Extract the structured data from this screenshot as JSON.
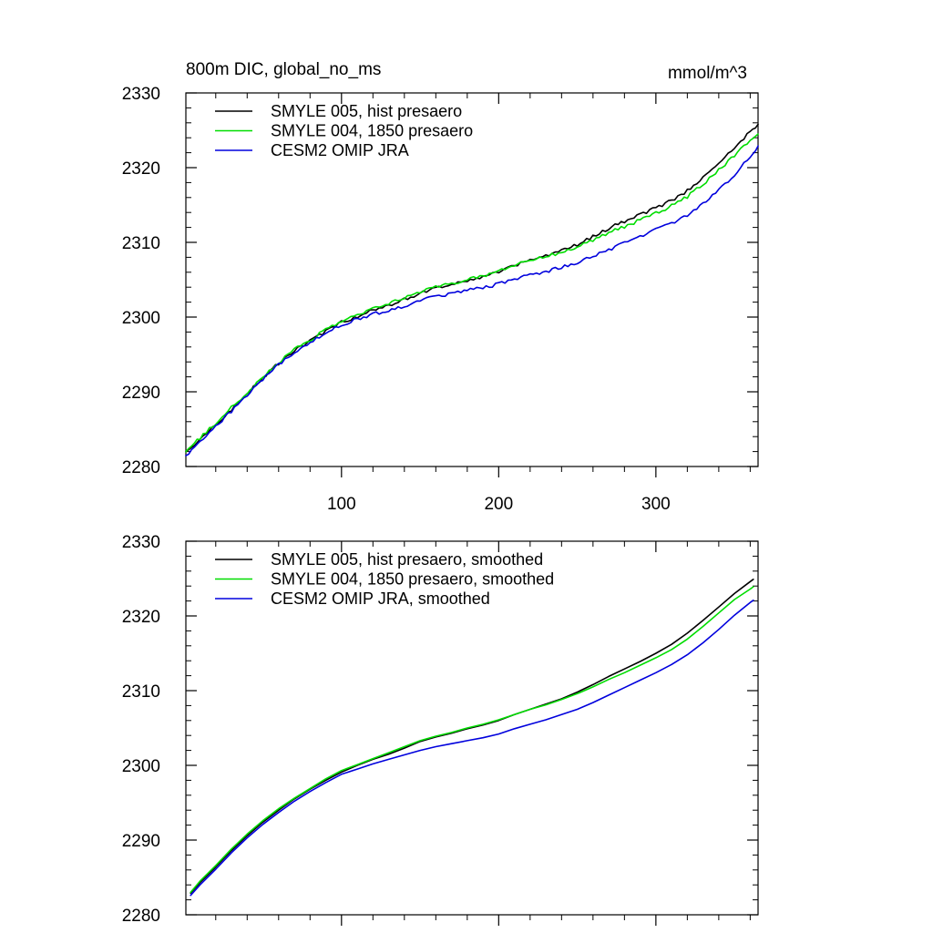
{
  "chart_data": [
    {
      "type": "line",
      "title": "800m DIC, global_no_ms",
      "units": "mmol/m^3",
      "xlabel": "",
      "ylabel": "",
      "xlim": [
        1,
        365
      ],
      "ylim": [
        2280,
        2330
      ],
      "x_ticks": [
        100,
        200,
        300
      ],
      "x_tick_labels": [
        "100",
        "200",
        "300"
      ],
      "y_ticks": [
        2280,
        2290,
        2300,
        2310,
        2320,
        2330
      ],
      "y_tick_labels": [
        "2280",
        "2290",
        "2300",
        "2310",
        "2320",
        "2330"
      ],
      "legend_position": "top-left",
      "grid": false,
      "noisy": true,
      "series": [
        {
          "name": "SMYLE 005, hist presaero",
          "color": "#000000",
          "x": [
            1,
            10,
            20,
            30,
            40,
            50,
            60,
            70,
            80,
            90,
            100,
            110,
            120,
            130,
            140,
            150,
            160,
            170,
            180,
            190,
            200,
            210,
            220,
            230,
            240,
            250,
            260,
            270,
            280,
            290,
            300,
            310,
            320,
            330,
            340,
            350,
            360,
            365
          ],
          "values": [
            2282.0,
            2283.6,
            2285.6,
            2287.6,
            2289.7,
            2291.9,
            2293.8,
            2295.5,
            2296.8,
            2298.1,
            2299.3,
            2300.1,
            2300.9,
            2301.6,
            2302.4,
            2303.2,
            2303.9,
            2304.4,
            2304.9,
            2305.4,
            2306.0,
            2306.9,
            2307.6,
            2308.2,
            2308.9,
            2309.7,
            2310.8,
            2311.9,
            2312.8,
            2313.7,
            2314.6,
            2315.6,
            2316.9,
            2318.7,
            2320.6,
            2322.6,
            2324.8,
            2325.8
          ]
        },
        {
          "name": "SMYLE 004, 1850 presaero",
          "color": "#00dd00",
          "x": [
            1,
            10,
            20,
            30,
            40,
            50,
            60,
            70,
            80,
            90,
            100,
            110,
            120,
            130,
            140,
            150,
            160,
            170,
            180,
            190,
            200,
            210,
            220,
            230,
            240,
            250,
            260,
            270,
            280,
            290,
            300,
            310,
            320,
            330,
            340,
            350,
            360,
            365
          ],
          "values": [
            2282.1,
            2283.8,
            2285.8,
            2287.9,
            2289.9,
            2292.0,
            2293.9,
            2295.6,
            2296.9,
            2298.3,
            2299.5,
            2300.3,
            2301.1,
            2301.8,
            2302.6,
            2303.4,
            2304.0,
            2304.5,
            2305.0,
            2305.5,
            2306.1,
            2306.9,
            2307.5,
            2308.1,
            2308.7,
            2309.4,
            2310.3,
            2311.3,
            2312.1,
            2313.0,
            2313.9,
            2314.9,
            2316.1,
            2317.8,
            2319.7,
            2321.6,
            2323.6,
            2324.5
          ]
        },
        {
          "name": "CESM2 OMIP JRA",
          "color": "#0000dd",
          "x": [
            1,
            10,
            20,
            30,
            40,
            50,
            60,
            70,
            80,
            90,
            100,
            110,
            120,
            130,
            140,
            150,
            160,
            170,
            180,
            190,
            200,
            210,
            220,
            230,
            240,
            250,
            260,
            270,
            280,
            290,
            300,
            310,
            320,
            330,
            340,
            350,
            360,
            365
          ],
          "values": [
            2281.5,
            2283.2,
            2285.3,
            2287.4,
            2289.5,
            2291.7,
            2293.6,
            2295.3,
            2296.6,
            2297.9,
            2299.0,
            2299.7,
            2300.4,
            2300.9,
            2301.5,
            2302.2,
            2302.7,
            2303.1,
            2303.6,
            2303.9,
            2304.4,
            2305.0,
            2305.6,
            2306.1,
            2306.7,
            2307.3,
            2308.1,
            2309.0,
            2309.9,
            2310.8,
            2311.7,
            2312.6,
            2313.6,
            2315.1,
            2317.0,
            2319.1,
            2321.5,
            2322.9
          ]
        }
      ]
    },
    {
      "type": "line",
      "title": "",
      "xlabel": "",
      "ylabel": "",
      "xlim": [
        1,
        365
      ],
      "ylim": [
        2280,
        2330
      ],
      "x_ticks": [
        100,
        200,
        300
      ],
      "x_tick_labels": [],
      "y_ticks": [
        2280,
        2290,
        2300,
        2310,
        2320,
        2330
      ],
      "y_tick_labels": [
        "2280",
        "2290",
        "2300",
        "2310",
        "2320",
        "2330"
      ],
      "legend_position": "top-left",
      "grid": false,
      "noisy": false,
      "series": [
        {
          "name": "SMYLE 005, hist presaero, smoothed",
          "color": "#000000",
          "x": [
            4,
            10,
            20,
            30,
            40,
            50,
            60,
            70,
            80,
            90,
            100,
            110,
            120,
            130,
            140,
            150,
            160,
            170,
            180,
            190,
            200,
            210,
            220,
            230,
            240,
            250,
            260,
            270,
            280,
            290,
            300,
            310,
            320,
            330,
            340,
            350,
            360,
            362
          ],
          "values": [
            2282.9,
            2284.3,
            2286.4,
            2288.6,
            2290.6,
            2292.4,
            2294.0,
            2295.5,
            2296.8,
            2298.0,
            2299.1,
            2300.0,
            2300.8,
            2301.5,
            2302.3,
            2303.2,
            2303.8,
            2304.3,
            2304.9,
            2305.4,
            2306.0,
            2306.8,
            2307.5,
            2308.2,
            2308.9,
            2309.8,
            2310.8,
            2311.9,
            2312.9,
            2313.9,
            2315.0,
            2316.2,
            2317.7,
            2319.4,
            2321.2,
            2323.0,
            2324.6,
            2324.9
          ]
        },
        {
          "name": "SMYLE 004, 1850 presaero, smoothed",
          "color": "#00dd00",
          "x": [
            4,
            10,
            20,
            30,
            40,
            50,
            60,
            70,
            80,
            90,
            100,
            110,
            120,
            130,
            140,
            150,
            160,
            170,
            180,
            190,
            200,
            210,
            220,
            230,
            240,
            250,
            260,
            270,
            280,
            290,
            300,
            310,
            320,
            330,
            340,
            350,
            360,
            362
          ],
          "values": [
            2283.0,
            2284.5,
            2286.6,
            2288.8,
            2290.8,
            2292.6,
            2294.2,
            2295.6,
            2296.9,
            2298.2,
            2299.3,
            2300.1,
            2300.9,
            2301.7,
            2302.5,
            2303.3,
            2303.9,
            2304.4,
            2305.0,
            2305.5,
            2306.1,
            2306.8,
            2307.5,
            2308.1,
            2308.8,
            2309.6,
            2310.5,
            2311.5,
            2312.4,
            2313.4,
            2314.4,
            2315.5,
            2316.9,
            2318.6,
            2320.4,
            2322.2,
            2323.6,
            2323.9
          ]
        },
        {
          "name": "CESM2 OMIP JRA, smoothed",
          "color": "#0000dd",
          "x": [
            4,
            10,
            20,
            30,
            40,
            50,
            60,
            70,
            80,
            90,
            100,
            110,
            120,
            130,
            140,
            150,
            160,
            170,
            180,
            190,
            200,
            210,
            220,
            230,
            240,
            250,
            260,
            270,
            280,
            290,
            300,
            310,
            320,
            330,
            340,
            350,
            360,
            362
          ],
          "values": [
            2282.6,
            2284.0,
            2286.1,
            2288.3,
            2290.3,
            2292.1,
            2293.7,
            2295.2,
            2296.5,
            2297.7,
            2298.8,
            2299.5,
            2300.2,
            2300.8,
            2301.4,
            2302.0,
            2302.5,
            2302.9,
            2303.3,
            2303.7,
            2304.2,
            2304.9,
            2305.5,
            2306.1,
            2306.8,
            2307.5,
            2308.4,
            2309.4,
            2310.4,
            2311.4,
            2312.4,
            2313.5,
            2314.8,
            2316.4,
            2318.2,
            2320.1,
            2321.8,
            2322.1
          ]
        }
      ]
    }
  ]
}
